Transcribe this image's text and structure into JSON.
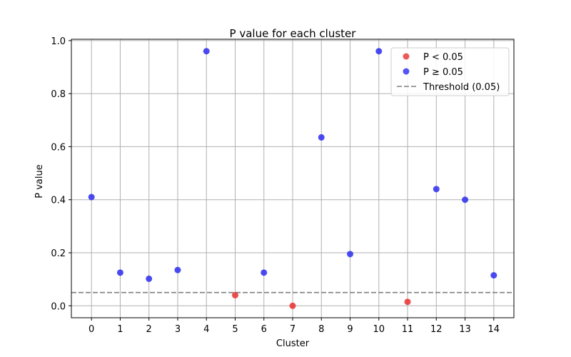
{
  "chart_data": {
    "type": "scatter",
    "title": "P value for each cluster",
    "xlabel": "Cluster",
    "ylabel": "P value",
    "x": [
      0,
      1,
      2,
      3,
      4,
      5,
      6,
      7,
      8,
      9,
      10,
      11,
      12,
      13,
      14
    ],
    "y": [
      0.41,
      0.125,
      0.102,
      0.135,
      0.96,
      0.04,
      0.125,
      0.0,
      0.635,
      0.195,
      0.96,
      0.015,
      0.44,
      0.4,
      0.115
    ],
    "xticks": [
      "0",
      "1",
      "2",
      "3",
      "4",
      "5",
      "6",
      "7",
      "8",
      "9",
      "10",
      "11",
      "12",
      "13",
      "14"
    ],
    "yticks": [
      "0.0",
      "0.2",
      "0.4",
      "0.6",
      "0.8",
      "1.0"
    ],
    "xlim": [
      -0.7,
      14.7
    ],
    "ylim": [
      -0.045,
      1.005
    ],
    "threshold": 0.05,
    "grid": true,
    "legend_position": "top-right",
    "legend": {
      "significant": "P < 0.05",
      "not_significant": "P ≥ 0.05",
      "threshold": "Threshold (0.05)"
    },
    "colors": {
      "significant": "#e8302f",
      "not_significant": "#2b2bf0",
      "threshold": "#7f7f7f",
      "grid": "#b0b0b0"
    }
  }
}
